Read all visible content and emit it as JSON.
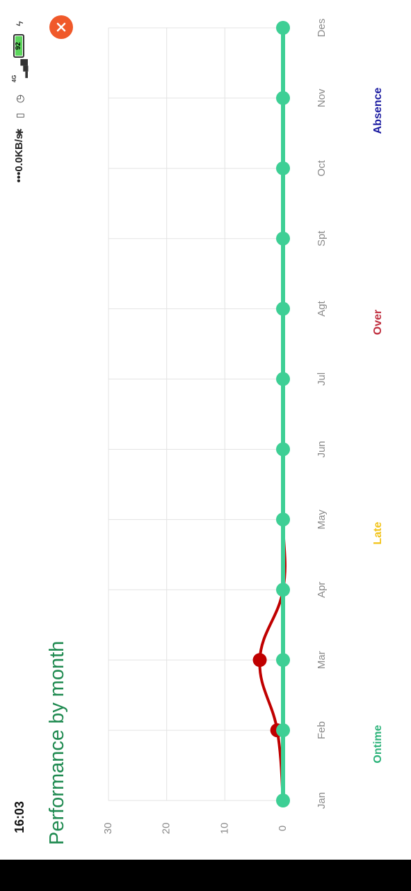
{
  "status_bar": {
    "time": "16:03",
    "net_speed": "•••0.0KB/s",
    "network_type": "4G",
    "battery": "92"
  },
  "title": "Performance by month",
  "chart_data": {
    "type": "line",
    "title": "Performance by month",
    "xlabel": "",
    "ylabel": "",
    "categories": [
      "Jan",
      "Feb",
      "Mar",
      "Apr",
      "May",
      "Jun",
      "Jul",
      "Agt",
      "Spt",
      "Oct",
      "Nov",
      "Des"
    ],
    "ylim": [
      0,
      30
    ],
    "yticks": [
      0,
      10,
      20,
      30
    ],
    "grid": true,
    "legend_position": "bottom",
    "series": [
      {
        "name": "Ontime",
        "color": "#2db37a",
        "line_color": "#3ecf95",
        "values": [
          0,
          0,
          0,
          0,
          0,
          0,
          0,
          0,
          0,
          0,
          0,
          0
        ]
      },
      {
        "name": "Late",
        "color": "#f2c318",
        "line_color": "#f2c318",
        "values": [
          0,
          0,
          0,
          0,
          0,
          0,
          0,
          0,
          0,
          0,
          0,
          0
        ]
      },
      {
        "name": "Over",
        "color": "#c03040",
        "line_color": "#c00000",
        "values": [
          0,
          1,
          4,
          0,
          0,
          0,
          0,
          0,
          0,
          0,
          0,
          0
        ]
      },
      {
        "name": "Absence",
        "color": "#1a1aa0",
        "line_color": "#1a1aa0",
        "values": [
          0,
          0,
          0,
          0,
          0,
          0,
          0,
          0,
          0,
          0,
          0,
          0
        ]
      }
    ]
  },
  "colors": {
    "title": "#1f8a50",
    "close_button": "#f0592a",
    "grid": "#e3e3e3",
    "tick_label": "#8a8a8a"
  },
  "icons": {
    "close": "close-icon",
    "bluetooth": "bluetooth-icon",
    "vibrate_off": "vibrate-off-icon",
    "alarm": "alarm-icon",
    "signal": "signal-icon",
    "battery": "battery-icon",
    "charging": "charging-icon"
  }
}
